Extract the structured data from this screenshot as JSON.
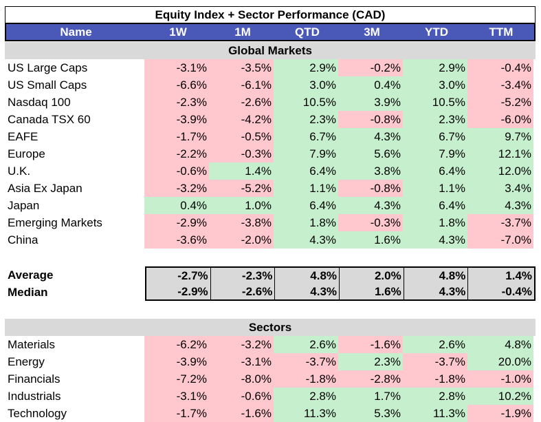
{
  "title": "Equity Index + Sector Performance (CAD)",
  "columns": [
    "Name",
    "1W",
    "1M",
    "QTD",
    "3M",
    "YTD",
    "TTM"
  ],
  "global_section": "Global Markets",
  "global_rows": [
    {
      "name": "US Large Caps",
      "values": [
        "-3.1%",
        "-3.5%",
        "2.9%",
        "-0.2%",
        "2.9%",
        "-0.4%"
      ]
    },
    {
      "name": "US Small Caps",
      "values": [
        "-6.6%",
        "-6.1%",
        "3.0%",
        "0.4%",
        "3.0%",
        "-3.4%"
      ]
    },
    {
      "name": "Nasdaq 100",
      "values": [
        "-2.3%",
        "-2.6%",
        "10.5%",
        "3.9%",
        "10.5%",
        "-5.2%"
      ]
    },
    {
      "name": "Canada TSX 60",
      "values": [
        "-3.9%",
        "-4.2%",
        "2.3%",
        "-0.8%",
        "2.3%",
        "-6.0%"
      ]
    },
    {
      "name": "EAFE",
      "values": [
        "-1.7%",
        "-0.5%",
        "6.7%",
        "4.3%",
        "6.7%",
        "9.7%"
      ]
    },
    {
      "name": "Europe",
      "values": [
        "-2.2%",
        "-0.3%",
        "7.9%",
        "5.6%",
        "7.9%",
        "12.1%"
      ]
    },
    {
      "name": "U.K.",
      "values": [
        "-0.6%",
        "1.4%",
        "6.4%",
        "3.8%",
        "6.4%",
        "12.0%"
      ]
    },
    {
      "name": "Asia Ex Japan",
      "values": [
        "-3.2%",
        "-5.2%",
        "1.1%",
        "-0.8%",
        "1.1%",
        "3.4%"
      ]
    },
    {
      "name": "Japan",
      "values": [
        "0.4%",
        "1.0%",
        "6.4%",
        "4.3%",
        "6.4%",
        "4.3%"
      ]
    },
    {
      "name": "Emerging Markets",
      "values": [
        "-2.9%",
        "-3.8%",
        "1.8%",
        "-0.3%",
        "1.8%",
        "-3.7%"
      ]
    },
    {
      "name": "China",
      "values": [
        "-3.6%",
        "-2.0%",
        "4.3%",
        "1.6%",
        "4.3%",
        "-7.0%"
      ]
    }
  ],
  "stats": [
    {
      "name": "Average",
      "values": [
        "-2.7%",
        "-2.3%",
        "4.8%",
        "2.0%",
        "4.8%",
        "1.4%"
      ]
    },
    {
      "name": "Median",
      "values": [
        "-2.9%",
        "-2.6%",
        "4.3%",
        "1.6%",
        "4.3%",
        "-0.4%"
      ]
    }
  ],
  "sector_section": "Sectors",
  "sector_rows": [
    {
      "name": "Materials",
      "values": [
        "-6.2%",
        "-3.2%",
        "2.6%",
        "-1.6%",
        "2.6%",
        "4.8%"
      ]
    },
    {
      "name": "Energy",
      "values": [
        "-3.9%",
        "-3.1%",
        "-3.7%",
        "2.3%",
        "-3.7%",
        "20.0%"
      ]
    },
    {
      "name": "Financials",
      "values": [
        "-7.2%",
        "-8.0%",
        "-1.8%",
        "-2.8%",
        "-1.8%",
        "-1.0%"
      ]
    },
    {
      "name": "Industrials",
      "values": [
        "-3.1%",
        "-0.6%",
        "2.8%",
        "1.7%",
        "2.8%",
        "10.2%"
      ]
    },
    {
      "name": "Technology",
      "values": [
        "-1.7%",
        "-1.6%",
        "11.3%",
        "5.3%",
        "11.3%",
        "-1.9%"
      ]
    }
  ],
  "colors": {
    "header": "#4a58b8",
    "negative": "#ffc7ce",
    "positive": "#c6efce",
    "band": "#d9d9d9"
  }
}
